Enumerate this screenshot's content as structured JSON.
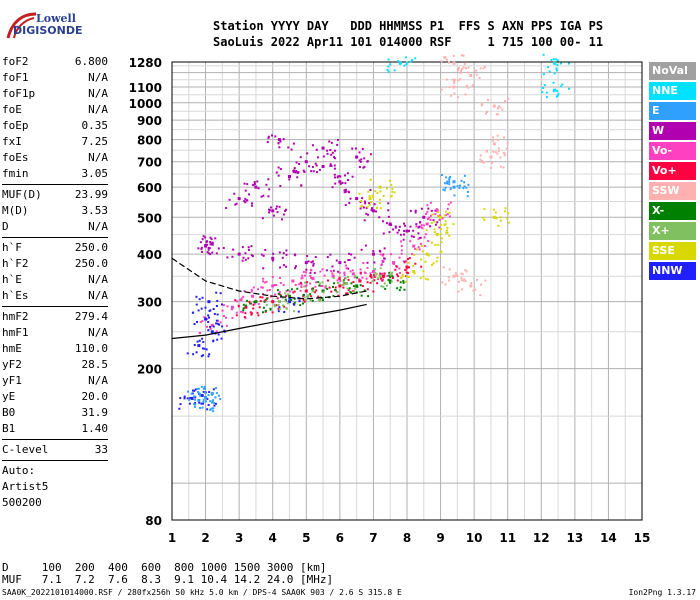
{
  "logo": {
    "line1": "Lowell",
    "line2": "DIGISONDE"
  },
  "header": {
    "line1": "Station YYYY DAY   DDD HHMMSS P1  FFS S AXN PPS IGA PS",
    "line2": "SaoLuis 2022 Apr11 101 014000 RSF     1 715 100 00- 11"
  },
  "params": [
    {
      "label": "foF2",
      "value": "6.800"
    },
    {
      "label": "foF1",
      "value": "N/A"
    },
    {
      "label": "foF1p",
      "value": "N/A"
    },
    {
      "label": "foE",
      "value": "N/A"
    },
    {
      "label": "foEp",
      "value": "0.35"
    },
    {
      "label": "fxI",
      "value": "7.25"
    },
    {
      "label": "foEs",
      "value": "N/A"
    },
    {
      "label": "fmin",
      "value": "3.05"
    },
    {
      "sep": true
    },
    {
      "label": "MUF(D)",
      "value": "23.99"
    },
    {
      "label": "M(D)",
      "value": "3.53"
    },
    {
      "label": "D",
      "value": "N/A"
    },
    {
      "sep": true
    },
    {
      "label": "h`F",
      "value": "250.0"
    },
    {
      "label": "h`F2",
      "value": "250.0"
    },
    {
      "label": "h`E",
      "value": "N/A"
    },
    {
      "label": "h`Es",
      "value": "N/A"
    },
    {
      "sep": true
    },
    {
      "label": "hmF2",
      "value": "279.4"
    },
    {
      "label": "hmF1",
      "value": "N/A"
    },
    {
      "label": "hmE",
      "value": "110.0"
    },
    {
      "label": "yF2",
      "value": "28.5"
    },
    {
      "label": "yF1",
      "value": "N/A"
    },
    {
      "label": "yE",
      "value": "20.0"
    },
    {
      "label": "B0",
      "value": "31.9"
    },
    {
      "label": "B1",
      "value": "1.40"
    },
    {
      "sep": true
    },
    {
      "label": "C-level",
      "value": "33"
    },
    {
      "sep": true
    }
  ],
  "autoscaling": {
    "line1": "Auto:",
    "line2": "Artist5",
    "line3": "500200"
  },
  "legend": [
    {
      "label": "NoVal",
      "color": "#a0a0a0"
    },
    {
      "label": "NNE",
      "color": "#00e0ff"
    },
    {
      "label": "E",
      "color": "#30a0ff"
    },
    {
      "label": "W",
      "color": "#b000b0"
    },
    {
      "label": "Vo-",
      "color": "#ff40c0"
    },
    {
      "label": "Vo+",
      "color": "#ff0040"
    },
    {
      "label": "SSW",
      "color": "#ffb0b0"
    },
    {
      "label": "X-",
      "color": "#008000"
    },
    {
      "label": "X+",
      "color": "#80c060"
    },
    {
      "label": "SSE",
      "color": "#d8d800"
    },
    {
      "label": "NNW",
      "color": "#2020ff"
    }
  ],
  "muf_table": {
    "d_row": "D     100  200  400  600  800 1000 1500 3000 [km]",
    "muf_row": "MUF   7.1  7.2  7.6  8.3  9.1 10.4 14.2 24.0 [MHz]"
  },
  "footer": "SAA0K_2022101014000.RSF / 280fx256h 50 kHz 5.0 km / DPS-4 SAA0K 903 / 2.6 S 315.8 E",
  "version": "Ion2Png 1.3.17",
  "chart_data": {
    "type": "scatter",
    "title": "",
    "xlabel": "",
    "ylabel": "",
    "xlim": [
      1,
      15
    ],
    "ylim": [
      80,
      1280
    ],
    "y_scale": "log",
    "x_ticks": [
      1,
      2,
      3,
      4,
      5,
      6,
      7,
      8,
      9,
      10,
      11,
      12,
      13,
      14,
      15
    ],
    "y_ticks": [
      80,
      200,
      300,
      400,
      500,
      600,
      700,
      800,
      900,
      1000,
      1100,
      1280
    ],
    "grid": true,
    "series": [
      {
        "name": "W",
        "points": [
          [
            3.0,
            560
          ],
          [
            3.5,
            600
          ],
          [
            4.0,
            520
          ],
          [
            4.5,
            640
          ],
          [
            5.0,
            700
          ],
          [
            5.5,
            680
          ],
          [
            6.0,
            620
          ],
          [
            6.5,
            560
          ],
          [
            7.0,
            520
          ],
          [
            7.5,
            480
          ],
          [
            8.0,
            460
          ],
          [
            8.5,
            500
          ],
          [
            3.0,
            400
          ],
          [
            4.0,
            390
          ],
          [
            5.0,
            380
          ],
          [
            6.0,
            380
          ],
          [
            7.0,
            400
          ],
          [
            2.0,
            420
          ],
          [
            2.2,
            425
          ],
          [
            5.5,
            760
          ],
          [
            6.5,
            720
          ],
          [
            4.2,
            800
          ]
        ]
      },
      {
        "name": "Vo-",
        "points": [
          [
            2.2,
            260
          ],
          [
            2.8,
            290
          ],
          [
            3.4,
            310
          ],
          [
            4.0,
            330
          ],
          [
            4.6,
            340
          ],
          [
            5.2,
            345
          ],
          [
            5.8,
            350
          ],
          [
            6.4,
            355
          ],
          [
            7.0,
            360
          ],
          [
            7.6,
            380
          ],
          [
            8.2,
            420
          ],
          [
            8.6,
            480
          ],
          [
            8.9,
            520
          ]
        ]
      },
      {
        "name": "Vo+",
        "points": [
          [
            3.2,
            290
          ],
          [
            4.0,
            300
          ],
          [
            5.0,
            320
          ],
          [
            6.0,
            330
          ],
          [
            6.6,
            340
          ],
          [
            7.3,
            350
          ],
          [
            8.0,
            370
          ]
        ]
      },
      {
        "name": "NNW",
        "points": [
          [
            1.8,
            230
          ],
          [
            2.0,
            270
          ],
          [
            2.2,
            250
          ],
          [
            1.9,
            170
          ],
          [
            1.6,
            167
          ],
          [
            2.1,
            300
          ],
          [
            4.5,
            300
          ]
        ]
      },
      {
        "name": "E",
        "points": [
          [
            1.8,
            165
          ],
          [
            2.0,
            168
          ],
          [
            2.2,
            172
          ],
          [
            9.4,
            620
          ],
          [
            9.4,
            600
          ]
        ]
      },
      {
        "name": "SSE",
        "points": [
          [
            8.2,
            360
          ],
          [
            8.6,
            400
          ],
          [
            8.9,
            450
          ],
          [
            9.0,
            500
          ],
          [
            6.9,
            560
          ],
          [
            7.2,
            600
          ],
          [
            10.6,
            500
          ]
        ]
      },
      {
        "name": "X-",
        "points": [
          [
            3.5,
            300
          ],
          [
            4.5,
            310
          ],
          [
            5.5,
            320
          ],
          [
            6.5,
            330
          ],
          [
            7.5,
            340
          ]
        ]
      },
      {
        "name": "X+",
        "points": [
          [
            4.2,
            300
          ],
          [
            5.2,
            320
          ],
          [
            6.2,
            335
          ],
          [
            7.2,
            350
          ]
        ]
      },
      {
        "name": "SSW",
        "points": [
          [
            9.4,
            1270
          ],
          [
            9.4,
            1100
          ],
          [
            9.9,
            1180
          ],
          [
            10.6,
            980
          ],
          [
            10.6,
            780
          ],
          [
            10.5,
            720
          ],
          [
            9.9,
            330
          ],
          [
            9.4,
            350
          ]
        ]
      },
      {
        "name": "NNE",
        "points": [
          [
            12.4,
            1080
          ],
          [
            12.4,
            1270
          ],
          [
            7.8,
            1270
          ]
        ]
      }
    ],
    "trace": {
      "name": "h`F2 trace",
      "points": [
        [
          1.0,
          240
        ],
        [
          2.0,
          245
        ],
        [
          3.0,
          255
        ],
        [
          4.0,
          265
        ],
        [
          5.0,
          275
        ],
        [
          6.0,
          285
        ],
        [
          6.8,
          295
        ]
      ]
    },
    "trace_upper": {
      "points": [
        [
          1.0,
          390
        ],
        [
          2.0,
          340
        ],
        [
          3.0,
          320
        ],
        [
          4.0,
          310
        ],
        [
          5.0,
          305
        ],
        [
          6.0,
          310
        ],
        [
          6.8,
          320
        ]
      ]
    }
  }
}
